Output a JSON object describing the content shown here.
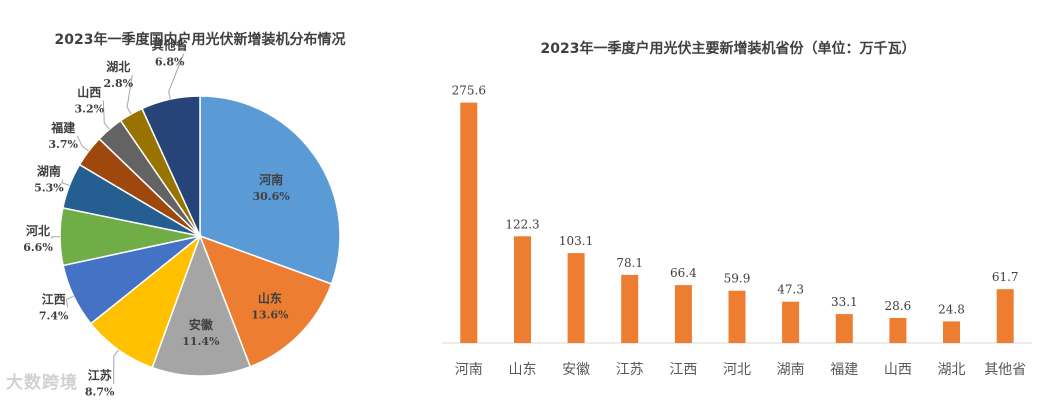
{
  "chart_data": [
    {
      "type": "pie",
      "title": "2023年一季度国内户用光伏新增装机分布情况",
      "slices": [
        {
          "label": "河南",
          "value": 30.6,
          "display": "30.6%",
          "color": "#5B9BD5"
        },
        {
          "label": "山东",
          "value": 13.6,
          "display": "13.6%",
          "color": "#ED7D31"
        },
        {
          "label": "安徽",
          "value": 11.4,
          "display": "11.4%",
          "color": "#A5A5A5"
        },
        {
          "label": "江苏",
          "value": 8.7,
          "display": "8.7%",
          "color": "#FFC000"
        },
        {
          "label": "江西",
          "value": 7.4,
          "display": "7.4%",
          "color": "#4472C4"
        },
        {
          "label": "河北",
          "value": 6.6,
          "display": "6.6%",
          "color": "#70AD47"
        },
        {
          "label": "湖南",
          "value": 5.3,
          "display": "5.3%",
          "color": "#255E91"
        },
        {
          "label": "福建",
          "value": 3.7,
          "display": "3.7%",
          "color": "#9E480E"
        },
        {
          "label": "山西",
          "value": 3.2,
          "display": "3.2%",
          "color": "#636363"
        },
        {
          "label": "湖北",
          "value": 2.8,
          "display": "2.8%",
          "color": "#997300"
        },
        {
          "label": "其他省",
          "value": 6.8,
          "display": "6.8%",
          "color": "#264478"
        }
      ]
    },
    {
      "type": "bar",
      "title": "2023年一季度户用光伏主要新增装机省份（单位：万千瓦）",
      "categories": [
        "河南",
        "山东",
        "安徽",
        "江苏",
        "江西",
        "河北",
        "湖南",
        "福建",
        "山西",
        "湖北",
        "其他省"
      ],
      "values": [
        275.6,
        122.3,
        103.1,
        78.1,
        66.4,
        59.9,
        47.3,
        33.1,
        28.6,
        24.8,
        61.7
      ],
      "value_labels": [
        "275.6",
        "122.3",
        "103.1",
        "78.1",
        "66.4",
        "59.9",
        "47.3",
        "33.1",
        "28.6",
        "24.8",
        "61.7"
      ],
      "color": "#ED7D31",
      "ylim": [
        0,
        290
      ],
      "grid": false
    }
  ],
  "watermark": "大数跨境"
}
